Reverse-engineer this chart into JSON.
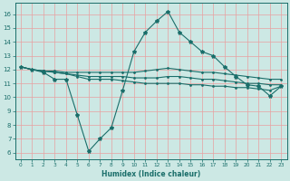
{
  "xlabel": "Humidex (Indice chaleur)",
  "bg_color": "#cce8e4",
  "grid_color": "#e8a0a0",
  "line_color": "#1a6e6a",
  "xlim": [
    -0.5,
    23.5
  ],
  "ylim": [
    5.5,
    16.8
  ],
  "yticks": [
    6,
    7,
    8,
    9,
    10,
    11,
    12,
    13,
    14,
    15,
    16
  ],
  "xticks": [
    0,
    1,
    2,
    3,
    4,
    5,
    6,
    7,
    8,
    9,
    10,
    11,
    12,
    13,
    14,
    15,
    16,
    17,
    18,
    19,
    20,
    21,
    22,
    23
  ],
  "line_max": [
    12.2,
    12.0,
    11.8,
    11.3,
    11.3,
    8.7,
    6.1,
    7.0,
    7.8,
    10.5,
    13.3,
    14.7,
    15.5,
    16.2,
    14.7,
    14.0,
    13.3,
    13.0,
    12.2,
    11.5,
    10.9,
    10.8,
    10.1,
    10.8
  ],
  "line_upper": [
    12.2,
    12.0,
    11.9,
    11.9,
    11.8,
    11.8,
    11.8,
    11.8,
    11.8,
    11.8,
    11.8,
    11.9,
    12.0,
    12.1,
    12.0,
    11.9,
    11.8,
    11.8,
    11.7,
    11.6,
    11.5,
    11.4,
    11.3,
    11.3
  ],
  "line_mean": [
    12.2,
    12.0,
    11.9,
    11.8,
    11.7,
    11.6,
    11.5,
    11.5,
    11.5,
    11.5,
    11.4,
    11.4,
    11.4,
    11.5,
    11.5,
    11.4,
    11.3,
    11.3,
    11.2,
    11.1,
    11.0,
    11.0,
    10.9,
    10.9
  ],
  "line_lower": [
    12.2,
    12.0,
    11.9,
    11.8,
    11.7,
    11.5,
    11.3,
    11.3,
    11.3,
    11.2,
    11.1,
    11.0,
    11.0,
    11.0,
    11.0,
    10.9,
    10.9,
    10.8,
    10.8,
    10.7,
    10.7,
    10.6,
    10.5,
    10.8
  ]
}
